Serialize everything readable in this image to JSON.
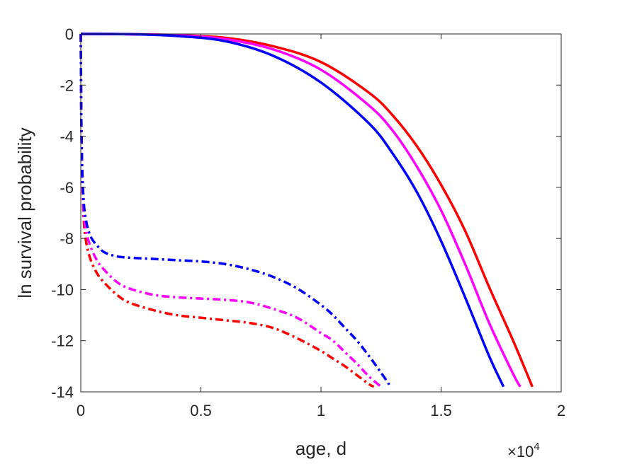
{
  "chart_data": {
    "type": "line",
    "xlabel": "age, d",
    "ylabel": "ln survival probability",
    "x_exponent_label": "×10",
    "x_exponent_power": "4",
    "xlim": [
      0,
      20000
    ],
    "ylim": [
      -14,
      0
    ],
    "xticks": [
      0,
      5000,
      10000,
      15000,
      20000
    ],
    "xtick_labels": [
      "0",
      "0.5",
      "1",
      "1.5",
      "2"
    ],
    "yticks": [
      0,
      -2,
      -4,
      -6,
      -8,
      -10,
      -12,
      -14
    ],
    "ytick_labels": [
      "0",
      "-2",
      "-4",
      "-6",
      "-8",
      "-10",
      "-12",
      "-14"
    ],
    "grid": false,
    "series": [
      {
        "color": "#ff0000",
        "style": "solid",
        "x": [
          0,
          2000,
          4000,
          6000,
          8000,
          10000,
          12000,
          13000,
          14000,
          15000,
          16000,
          17000,
          18000,
          18800
        ],
        "y": [
          0,
          -0.01,
          -0.05,
          -0.15,
          -0.48,
          -1.1,
          -2.3,
          -3.2,
          -4.4,
          -5.9,
          -7.7,
          -9.9,
          -12.0,
          -13.8
        ]
      },
      {
        "color": "#ff00ff",
        "style": "solid",
        "x": [
          0,
          2000,
          4000,
          6000,
          8000,
          10000,
          12000,
          13000,
          14000,
          15000,
          16000,
          17000,
          18000,
          18300
        ],
        "y": [
          0,
          -0.01,
          -0.05,
          -0.2,
          -0.6,
          -1.4,
          -2.8,
          -3.8,
          -5.2,
          -6.9,
          -9.0,
          -11.3,
          -13.3,
          -13.8
        ]
      },
      {
        "color": "#0000ff",
        "style": "solid",
        "x": [
          0,
          2000,
          4000,
          6000,
          8000,
          10000,
          12000,
          13000,
          14000,
          15000,
          16000,
          17000,
          17600
        ],
        "y": [
          0,
          -0.01,
          -0.08,
          -0.28,
          -0.85,
          -1.9,
          -3.5,
          -4.7,
          -6.2,
          -8.1,
          -10.3,
          -12.6,
          -13.8
        ]
      },
      {
        "color": "#ff0000",
        "style": "dashdot",
        "x": [
          0,
          30,
          100,
          200,
          400,
          700,
          1000,
          1500,
          2000,
          3000,
          4000,
          5000,
          6000,
          7000,
          8000,
          9000,
          10000,
          10500,
          11000,
          11500,
          12000,
          12200
        ],
        "y": [
          0,
          -4.0,
          -6.8,
          -8.0,
          -8.8,
          -9.4,
          -9.75,
          -10.2,
          -10.5,
          -10.8,
          -11.0,
          -11.1,
          -11.2,
          -11.3,
          -11.5,
          -11.9,
          -12.4,
          -12.7,
          -13.0,
          -13.35,
          -13.7,
          -13.8
        ]
      },
      {
        "color": "#ff00ff",
        "style": "dashdot",
        "x": [
          0,
          30,
          100,
          200,
          400,
          700,
          1000,
          1500,
          2000,
          3000,
          4000,
          5000,
          6000,
          7000,
          8000,
          9000,
          10000,
          10500,
          11000,
          11500,
          12000,
          12500
        ],
        "y": [
          0,
          -4.0,
          -6.5,
          -7.6,
          -8.3,
          -8.9,
          -9.25,
          -9.7,
          -9.95,
          -10.2,
          -10.3,
          -10.35,
          -10.4,
          -10.5,
          -10.75,
          -11.1,
          -11.7,
          -12.0,
          -12.45,
          -12.9,
          -13.4,
          -13.8
        ]
      },
      {
        "color": "#0000ff",
        "style": "dashdot",
        "x": [
          0,
          30,
          100,
          200,
          400,
          700,
          1000,
          1500,
          2000,
          3000,
          4000,
          5000,
          6000,
          7000,
          8000,
          9000,
          10000,
          10500,
          11000,
          11500,
          12000,
          12500,
          12900
        ],
        "y": [
          0,
          -4.0,
          -6.2,
          -7.2,
          -7.9,
          -8.3,
          -8.55,
          -8.7,
          -8.75,
          -8.8,
          -8.85,
          -8.9,
          -9.0,
          -9.2,
          -9.5,
          -9.95,
          -10.6,
          -11.0,
          -11.5,
          -12.0,
          -12.6,
          -13.25,
          -13.8
        ]
      }
    ]
  }
}
